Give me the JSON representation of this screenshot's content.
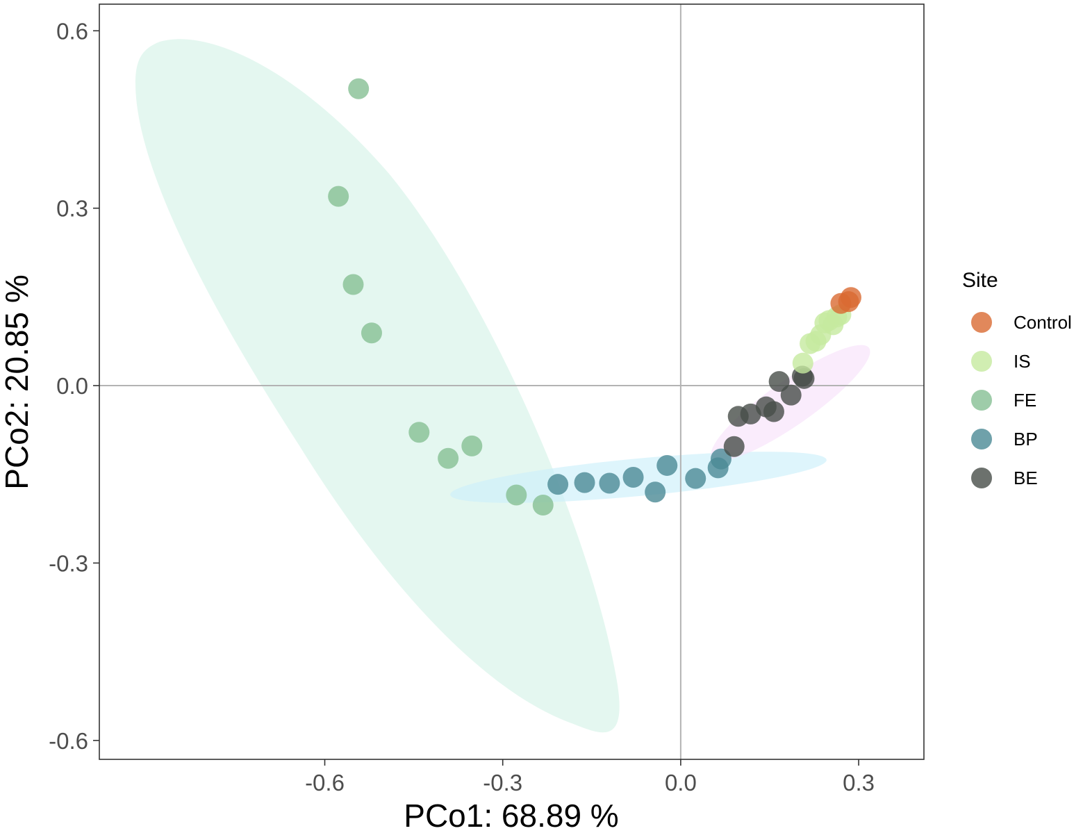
{
  "chart_data": {
    "type": "scatter",
    "title": "",
    "xlabel": "PCo1: 68.89 %",
    "ylabel": "PCo2: 20.85 %",
    "xlim": [
      -0.98,
      0.41
    ],
    "ylim": [
      -0.632,
      0.645
    ],
    "xticks": [
      -0.6,
      -0.3,
      0.0,
      0.3
    ],
    "xtick_labels": [
      "-0.6",
      "-0.3",
      "0.0",
      "0.3"
    ],
    "yticks": [
      -0.6,
      -0.3,
      0.0,
      0.3,
      0.6
    ],
    "ytick_labels": [
      "-0.6",
      "-0.3",
      "0.0",
      "0.3",
      "0.6"
    ],
    "reference_lines": {
      "x": 0.0,
      "y": 0.0
    },
    "grid": false,
    "legend": {
      "title": "Site",
      "position": "right"
    },
    "series": [
      {
        "name": "FE",
        "color": "#86bf94",
        "ellipse_color": "#d5f3e8",
        "points": [
          [
            -0.543,
            0.502
          ],
          [
            -0.577,
            0.32
          ],
          [
            -0.552,
            0.171
          ],
          [
            -0.521,
            0.089
          ],
          [
            -0.441,
            -0.079
          ],
          [
            -0.392,
            -0.123
          ],
          [
            -0.352,
            -0.102
          ],
          [
            -0.277,
            -0.185
          ],
          [
            -0.232,
            -0.202
          ]
        ]
      },
      {
        "name": "BP",
        "color": "#4b8a95",
        "ellipse_color": "#cdf0fb",
        "points": [
          [
            -0.207,
            -0.167
          ],
          [
            -0.162,
            -0.164
          ],
          [
            -0.12,
            -0.165
          ],
          [
            -0.08,
            -0.155
          ],
          [
            -0.043,
            -0.18
          ],
          [
            -0.023,
            -0.135
          ],
          [
            0.025,
            -0.157
          ],
          [
            0.063,
            -0.139
          ],
          [
            0.068,
            -0.124
          ]
        ]
      },
      {
        "name": "BE",
        "color": "#474e49",
        "ellipse_color": "#f8e2fb",
        "points": [
          [
            0.09,
            -0.103
          ],
          [
            0.097,
            -0.052
          ],
          [
            0.118,
            -0.048
          ],
          [
            0.144,
            -0.036
          ],
          [
            0.157,
            -0.044
          ],
          [
            0.166,
            0.007
          ],
          [
            0.186,
            -0.016
          ],
          [
            0.205,
            0.016
          ],
          [
            0.208,
            0.012
          ]
        ]
      },
      {
        "name": "IS",
        "color": "#c6ea9f",
        "points": [
          [
            0.206,
            0.038
          ],
          [
            0.218,
            0.071
          ],
          [
            0.228,
            0.075
          ],
          [
            0.236,
            0.086
          ],
          [
            0.243,
            0.106
          ],
          [
            0.25,
            0.11
          ],
          [
            0.257,
            0.103
          ],
          [
            0.263,
            0.116
          ],
          [
            0.27,
            0.12
          ]
        ]
      },
      {
        "name": "Control",
        "color": "#d96a32",
        "points": [
          [
            0.27,
            0.139
          ],
          [
            0.283,
            0.142
          ],
          [
            0.287,
            0.149
          ]
        ]
      }
    ]
  }
}
